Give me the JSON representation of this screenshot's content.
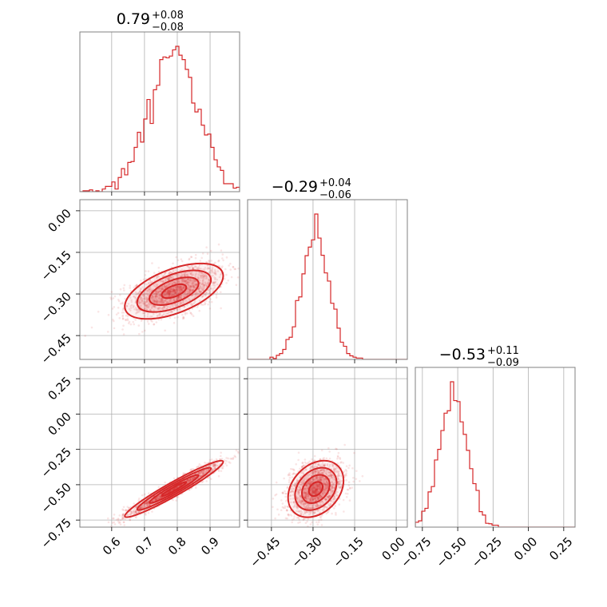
{
  "chart_data": {
    "type": "corner",
    "color": "#d62728",
    "grid": true,
    "parameters": [
      {
        "median": "0.79",
        "plus": "+0.08",
        "minus": "−0.08",
        "range": [
          0.503,
          0.99
        ],
        "mu": 0.79,
        "sigma": 0.075,
        "ticks": [
          0.6,
          0.7,
          0.8,
          0.9
        ],
        "tick_labels": [
          "0.6",
          "0.7",
          "0.8",
          "0.9"
        ]
      },
      {
        "median": "−0.29",
        "plus": "+0.04",
        "minus": "−0.06",
        "range": [
          -0.536,
          0.04
        ],
        "mu": -0.29,
        "sigma": 0.05,
        "ticks": [
          -0.45,
          -0.3,
          -0.15,
          0.0
        ],
        "tick_labels": [
          "−0.45",
          "−0.30",
          "−0.15",
          "0.00"
        ]
      },
      {
        "median": "−0.53",
        "plus": "+0.11",
        "minus": "−0.09",
        "range": [
          -0.8,
          0.33
        ],
        "mu": -0.53,
        "sigma": 0.1,
        "ticks": [
          -0.75,
          -0.5,
          -0.25,
          0.0,
          0.25
        ],
        "tick_labels": [
          "−0.75",
          "−0.50",
          "−0.25",
          "0.00",
          "0.25"
        ]
      }
    ],
    "correlations": [
      [
        0,
        1,
        0.55
      ],
      [
        0,
        2,
        0.96
      ],
      [
        1,
        2,
        0.3
      ]
    ]
  }
}
